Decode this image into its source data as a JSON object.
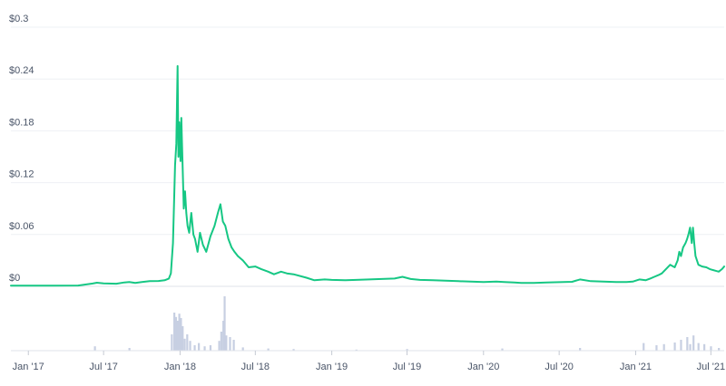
{
  "chart_data": {
    "type": "line",
    "title": "",
    "xlabel": "",
    "ylabel": "",
    "ylim": [
      0,
      0.3
    ],
    "y_ticks": [
      {
        "value": 0,
        "label": "$0"
      },
      {
        "value": 0.06,
        "label": "$0.06"
      },
      {
        "value": 0.12,
        "label": "$0.12"
      },
      {
        "value": 0.18,
        "label": "$0.18"
      },
      {
        "value": 0.24,
        "label": "$0.24"
      },
      {
        "value": 0.3,
        "label": "$0.3"
      }
    ],
    "x_ticks": [
      {
        "date": "2017-01-01",
        "label": "Jan '17"
      },
      {
        "date": "2017-07-01",
        "label": "Jul '17"
      },
      {
        "date": "2018-01-01",
        "label": "Jan '18"
      },
      {
        "date": "2018-07-01",
        "label": "Jul '18"
      },
      {
        "date": "2019-01-01",
        "label": "Jan '19"
      },
      {
        "date": "2019-07-01",
        "label": "Jul '19"
      },
      {
        "date": "2020-01-01",
        "label": "Jan '20"
      },
      {
        "date": "2020-07-01",
        "label": "Jul '20"
      },
      {
        "date": "2021-01-01",
        "label": "Jan '21"
      },
      {
        "date": "2021-07-01",
        "label": "Jul '21"
      }
    ],
    "grid": true,
    "line_color": "#16c784",
    "volume_color": "#c7cfe2",
    "price_series": {
      "dates": [
        "2016-11-20",
        "2017-01-01",
        "2017-03-01",
        "2017-05-01",
        "2017-06-05",
        "2017-06-15",
        "2017-07-01",
        "2017-08-01",
        "2017-08-20",
        "2017-09-01",
        "2017-09-15",
        "2017-10-01",
        "2017-10-20",
        "2017-11-10",
        "2017-11-25",
        "2017-12-05",
        "2017-12-10",
        "2017-12-15",
        "2017-12-20",
        "2017-12-23",
        "2017-12-26",
        "2017-12-28",
        "2017-12-30",
        "2018-01-02",
        "2018-01-04",
        "2018-01-06",
        "2018-01-08",
        "2018-01-10",
        "2018-01-13",
        "2018-01-16",
        "2018-01-19",
        "2018-01-23",
        "2018-01-28",
        "2018-02-02",
        "2018-02-06",
        "2018-02-12",
        "2018-02-18",
        "2018-02-25",
        "2018-03-05",
        "2018-03-15",
        "2018-03-25",
        "2018-04-02",
        "2018-04-08",
        "2018-04-14",
        "2018-04-20",
        "2018-04-27",
        "2018-05-05",
        "2018-05-12",
        "2018-05-20",
        "2018-06-01",
        "2018-06-15",
        "2018-07-01",
        "2018-07-15",
        "2018-08-01",
        "2018-08-15",
        "2018-09-01",
        "2018-09-15",
        "2018-10-01",
        "2018-11-01",
        "2018-11-20",
        "2018-12-15",
        "2019-01-01",
        "2019-02-01",
        "2019-03-01",
        "2019-04-01",
        "2019-05-01",
        "2019-06-01",
        "2019-06-20",
        "2019-07-10",
        "2019-08-01",
        "2019-09-01",
        "2019-10-01",
        "2019-11-01",
        "2019-12-01",
        "2020-01-01",
        "2020-02-01",
        "2020-02-20",
        "2020-03-15",
        "2020-04-01",
        "2020-05-01",
        "2020-06-01",
        "2020-07-01",
        "2020-08-01",
        "2020-08-20",
        "2020-09-15",
        "2020-10-15",
        "2020-11-15",
        "2020-12-10",
        "2020-12-25",
        "2021-01-10",
        "2021-01-25",
        "2021-02-05",
        "2021-02-15",
        "2021-02-25",
        "2021-03-05",
        "2021-03-15",
        "2021-03-25",
        "2021-04-05",
        "2021-04-12",
        "2021-04-16",
        "2021-04-20",
        "2021-04-25",
        "2021-05-01",
        "2021-05-05",
        "2021-05-08",
        "2021-05-12",
        "2021-05-16",
        "2021-05-19",
        "2021-05-22",
        "2021-05-25",
        "2021-06-01",
        "2021-06-10",
        "2021-06-20",
        "2021-06-28",
        "2021-07-05",
        "2021-07-12",
        "2021-07-20",
        "2021-07-28",
        "2021-08-02"
      ],
      "values": [
        0.0008,
        0.0008,
        0.0008,
        0.0009,
        0.0032,
        0.0042,
        0.0035,
        0.003,
        0.0045,
        0.005,
        0.004,
        0.005,
        0.006,
        0.0062,
        0.007,
        0.009,
        0.015,
        0.05,
        0.14,
        0.165,
        0.255,
        0.15,
        0.19,
        0.145,
        0.195,
        0.16,
        0.125,
        0.09,
        0.11,
        0.085,
        0.07,
        0.062,
        0.085,
        0.06,
        0.055,
        0.04,
        0.062,
        0.048,
        0.04,
        0.058,
        0.07,
        0.085,
        0.095,
        0.075,
        0.07,
        0.055,
        0.045,
        0.04,
        0.035,
        0.03,
        0.022,
        0.023,
        0.02,
        0.017,
        0.014,
        0.017,
        0.015,
        0.014,
        0.01,
        0.007,
        0.008,
        0.0075,
        0.007,
        0.0075,
        0.008,
        0.0085,
        0.009,
        0.011,
        0.0085,
        0.0075,
        0.007,
        0.0065,
        0.006,
        0.0055,
        0.005,
        0.0055,
        0.005,
        0.0045,
        0.004,
        0.004,
        0.0045,
        0.0048,
        0.0052,
        0.008,
        0.006,
        0.0055,
        0.005,
        0.005,
        0.0055,
        0.008,
        0.007,
        0.009,
        0.011,
        0.013,
        0.015,
        0.02,
        0.025,
        0.022,
        0.03,
        0.04,
        0.035,
        0.045,
        0.05,
        0.055,
        0.06,
        0.068,
        0.05,
        0.068,
        0.05,
        0.035,
        0.025,
        0.023,
        0.022,
        0.02,
        0.019,
        0.018,
        0.017,
        0.02,
        0.023
      ]
    },
    "volume_series": {
      "dates": [
        "2017-06-10",
        "2017-09-01",
        "2017-12-12",
        "2017-12-18",
        "2017-12-22",
        "2017-12-26",
        "2017-12-30",
        "2018-01-03",
        "2018-01-07",
        "2018-01-12",
        "2018-01-18",
        "2018-01-25",
        "2018-02-05",
        "2018-02-15",
        "2018-03-01",
        "2018-03-15",
        "2018-04-05",
        "2018-04-10",
        "2018-04-15",
        "2018-04-18",
        "2018-04-22",
        "2018-05-01",
        "2018-05-10",
        "2018-06-01",
        "2018-08-01",
        "2018-10-01",
        "2019-03-01",
        "2019-07-01",
        "2020-02-15",
        "2020-08-20",
        "2021-01-20",
        "2021-02-20",
        "2021-03-10",
        "2021-04-05",
        "2021-04-20",
        "2021-05-05",
        "2021-05-12",
        "2021-05-20",
        "2021-06-01",
        "2021-06-15",
        "2021-07-01",
        "2021-07-20"
      ],
      "values": [
        0.08,
        0.05,
        0.3,
        0.7,
        0.62,
        0.55,
        0.68,
        0.6,
        0.45,
        0.22,
        0.3,
        0.18,
        0.1,
        0.14,
        0.08,
        0.1,
        0.18,
        0.35,
        0.55,
        1.0,
        0.28,
        0.25,
        0.2,
        0.06,
        0.04,
        0.03,
        0.02,
        0.03,
        0.04,
        0.05,
        0.14,
        0.1,
        0.12,
        0.15,
        0.2,
        0.25,
        0.12,
        0.28,
        0.14,
        0.12,
        0.08,
        0.05
      ]
    }
  }
}
